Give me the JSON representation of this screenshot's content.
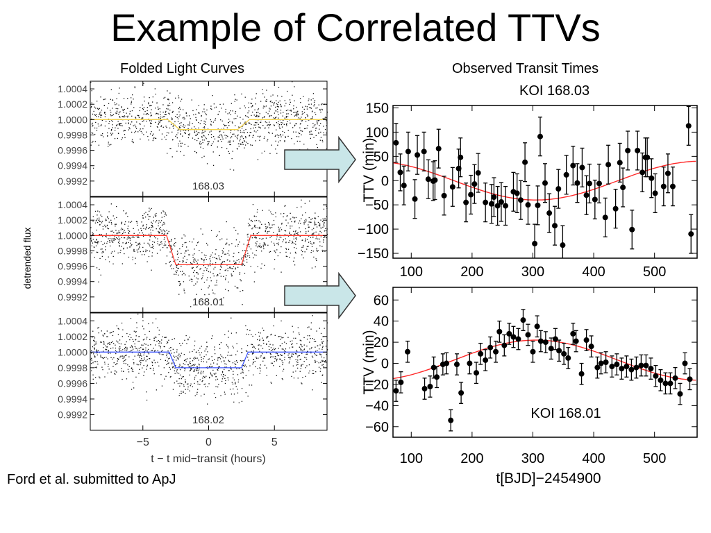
{
  "slide": {
    "title": "Example of Correlated TTVs",
    "left_heading": "Folded Light Curves",
    "right_heading": "Observed Transit Times",
    "right_subheading": "KOI 168.03",
    "citation": "Ford et al. submitted to ApJ"
  },
  "colors": {
    "arrow_fill": "#c9e6e8",
    "arrow_stroke": "#333333",
    "panel_168_03": "#f5d44c",
    "panel_168_01": "#ff3b30",
    "panel_168_02": "#3a52ff",
    "ttv_model": "#ff2a2a"
  },
  "chart_data": [
    {
      "type": "scatter",
      "panel_label": "168.03",
      "series_color": "#f5d44c",
      "yticks": [
        "1.0004",
        "1.0002",
        "1.0000",
        "0.9998",
        "0.9996",
        "0.9994",
        "0.9992"
      ],
      "ylim": [
        0.999,
        1.0005
      ],
      "xlim": [
        -9,
        9
      ],
      "scatter_sigma": 0.00018,
      "model": {
        "x": [
          -9,
          -3.1,
          -2.2,
          2.2,
          3.1,
          9
        ],
        "y": [
          1.0,
          1.0,
          0.99987,
          0.99987,
          1.0,
          1.0
        ]
      }
    },
    {
      "type": "scatter",
      "panel_label": "168.01",
      "series_color": "#ff3b30",
      "yticks": [
        "1.0004",
        "1.0002",
        "1.0000",
        "0.9998",
        "0.9996",
        "0.9994",
        "0.9992"
      ],
      "ylim": [
        0.999,
        1.0005
      ],
      "xlim": [
        -9,
        9
      ],
      "scatter_sigma": 0.00018,
      "model": {
        "x": [
          -9,
          -3.2,
          -2.5,
          2.5,
          3.2,
          9
        ],
        "y": [
          1.0,
          1.0,
          0.99962,
          0.99962,
          1.0,
          1.0
        ]
      }
    },
    {
      "type": "scatter",
      "panel_label": "168.02",
      "series_color": "#3a52ff",
      "yticks": [
        "1.0004",
        "1.0002",
        "1.0000",
        "0.9998",
        "0.9996",
        "0.9994",
        "0.9992"
      ],
      "ylim": [
        0.999,
        1.0005
      ],
      "xlim": [
        -9,
        9
      ],
      "xticks": [
        "−5",
        "0",
        "5"
      ],
      "xtick_values": [
        -5,
        0,
        5
      ],
      "xlabel": "t − t mid−transit (hours)",
      "ylabel": "detrended flux",
      "scatter_sigma": 0.00018,
      "model": {
        "x": [
          -9,
          -3.0,
          -2.5,
          2.5,
          3.0,
          9
        ],
        "y": [
          1.0,
          1.0,
          0.9998,
          0.9998,
          1.0,
          1.0
        ]
      }
    },
    {
      "type": "scatter",
      "title": "KOI 168.03",
      "ylabel": "TTV (min)",
      "xlim": [
        70,
        570
      ],
      "ylim": [
        -160,
        155
      ],
      "yticks": [
        150,
        100,
        50,
        0,
        -50,
        -100,
        -150
      ],
      "ytick_labels": [
        "150",
        "100",
        "50",
        "0",
        "−50",
        "−100",
        "−150"
      ],
      "xticks": [
        100,
        200,
        300,
        400,
        500
      ],
      "xtick_labels": [
        "100",
        "200",
        "300",
        "400",
        "500"
      ],
      "x": [
        75,
        82,
        88,
        95,
        106,
        110,
        121,
        128,
        136,
        139,
        145,
        154,
        168,
        178,
        181,
        190,
        198,
        204,
        210,
        222,
        232,
        236,
        242,
        248,
        255,
        268,
        274,
        280,
        287,
        292,
        303,
        308,
        312,
        320,
        327,
        336,
        342,
        349,
        355,
        366,
        373,
        381,
        388,
        393,
        402,
        409,
        419,
        424,
        436,
        443,
        448,
        456,
        463,
        472,
        480,
        485,
        488,
        495,
        501,
        515,
        522,
        530,
        556,
        560
      ],
      "y": [
        78,
        17,
        -10,
        60,
        -38,
        53,
        60,
        3,
        -1,
        1,
        66,
        -31,
        -13,
        25,
        48,
        -45,
        -29,
        -7,
        16,
        -45,
        -48,
        -34,
        -52,
        -44,
        -52,
        -23,
        -26,
        -40,
        38,
        -50,
        -130,
        -51,
        91,
        -5,
        -67,
        -93,
        -17,
        -133,
        12,
        31,
        -5,
        27,
        -30,
        -6,
        -39,
        -6,
        -76,
        33,
        -58,
        37,
        -14,
        62,
        -101,
        62,
        17,
        48,
        48,
        5,
        -26,
        -12,
        15,
        -12,
        113,
        -110
      ],
      "err": [
        40,
        38,
        40,
        40,
        40,
        40,
        40,
        40,
        40,
        40,
        40,
        40,
        40,
        40,
        40,
        40,
        40,
        40,
        40,
        40,
        40,
        40,
        40,
        40,
        40,
        40,
        40,
        40,
        40,
        40,
        40,
        40,
        40,
        40,
        40,
        40,
        40,
        40,
        40,
        40,
        40,
        40,
        40,
        40,
        40,
        40,
        40,
        40,
        40,
        40,
        40,
        40,
        40,
        40,
        40,
        40,
        40,
        40,
        40,
        40,
        40,
        40,
        40,
        40
      ],
      "model": {
        "amplitude": 40,
        "period": 540,
        "phase_center": 305,
        "sign": -1
      }
    },
    {
      "type": "scatter",
      "title": "KOI 168.01",
      "ylabel": "TTV (min)",
      "xlabel": "t[BJD]−2454900",
      "xlim": [
        70,
        570
      ],
      "ylim": [
        -70,
        72
      ],
      "yticks": [
        60,
        40,
        20,
        0,
        -20,
        -40,
        -60
      ],
      "ytick_labels": [
        "60",
        "40",
        "20",
        "0",
        "−20",
        "−40",
        "−60"
      ],
      "xticks": [
        100,
        200,
        300,
        400,
        500
      ],
      "xtick_labels": [
        "100",
        "200",
        "300",
        "400",
        "500"
      ],
      "x": [
        75,
        83,
        94,
        122,
        131,
        137,
        142,
        152,
        158,
        165,
        175,
        182,
        196,
        207,
        214,
        222,
        230,
        239,
        245,
        253,
        261,
        268,
        276,
        284,
        292,
        300,
        307,
        313,
        321,
        330,
        337,
        343,
        351,
        358,
        366,
        371,
        380,
        388,
        396,
        406,
        412,
        420,
        430,
        438,
        446,
        454,
        462,
        470,
        478,
        486,
        494,
        502,
        510,
        518,
        526,
        534,
        542,
        550,
        558
      ],
      "y": [
        -26,
        -18,
        11,
        -24,
        -22,
        -4,
        -13,
        -1,
        0,
        -54,
        -1,
        -28,
        0,
        -9,
        9,
        3,
        15,
        11,
        30,
        17,
        28,
        25,
        23,
        41,
        27,
        11,
        35,
        21,
        20,
        14,
        23,
        12,
        9,
        5,
        28,
        21,
        -10,
        22,
        16,
        -4,
        0,
        1,
        -3,
        -1,
        -5,
        -3,
        -6,
        -4,
        -2,
        -2,
        -5,
        -12,
        -16,
        -19,
        -19,
        -14,
        -29,
        0,
        -15
      ],
      "err": [
        10,
        10,
        10,
        10,
        10,
        10,
        10,
        10,
        10,
        10,
        10,
        10,
        10,
        10,
        10,
        10,
        10,
        10,
        10,
        10,
        10,
        10,
        10,
        10,
        10,
        10,
        10,
        10,
        10,
        10,
        10,
        10,
        10,
        10,
        10,
        10,
        10,
        10,
        10,
        10,
        10,
        10,
        10,
        10,
        10,
        10,
        10,
        10,
        10,
        10,
        10,
        10,
        10,
        10,
        10,
        10,
        10,
        10,
        10
      ],
      "model": {
        "amplitude": 19,
        "period": 540,
        "phase_center": 305,
        "offset": 3
      }
    }
  ]
}
